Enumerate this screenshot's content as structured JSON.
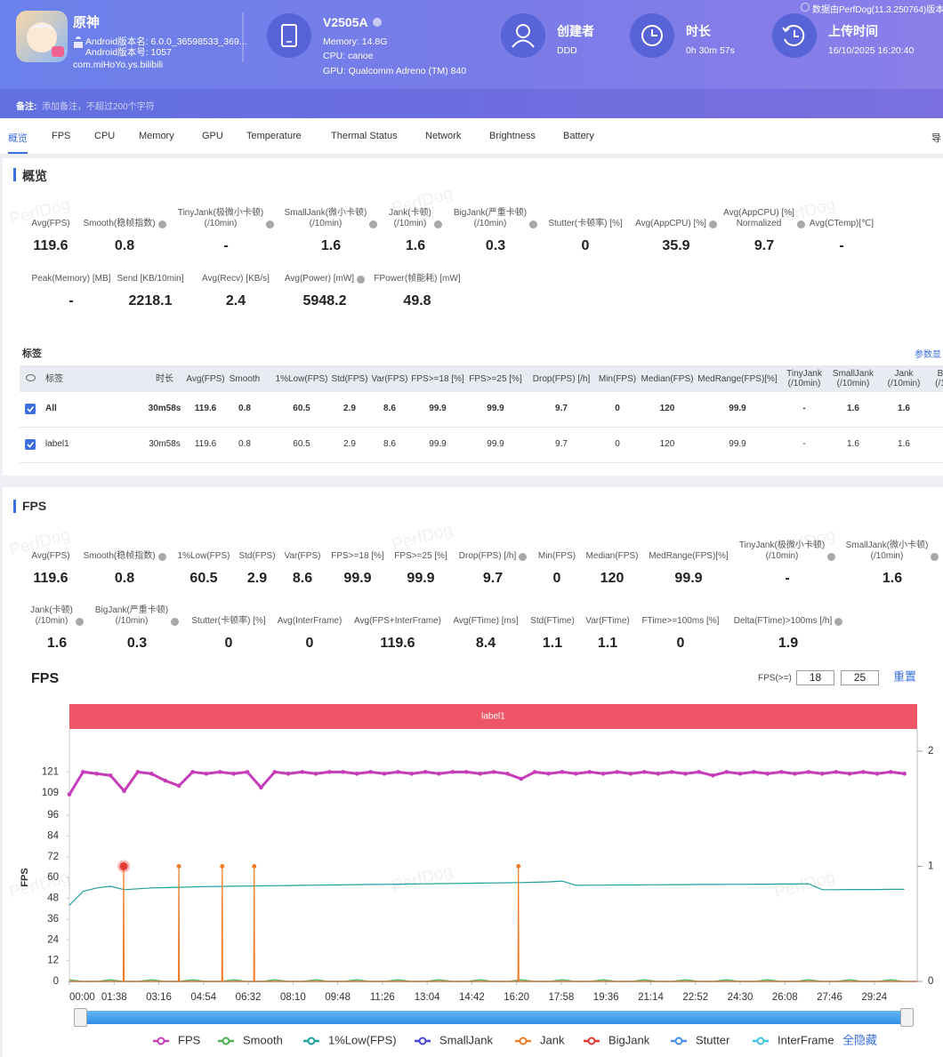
{
  "header": {
    "app_name": "原神",
    "android_version_name": "Android版本名: 6.0.0_36598533_369...",
    "android_version_code": "Android版本号: 1057",
    "package": "com.miHoYo.ys.bilibili",
    "device": "V2505A",
    "memory": "Memory: 14.8G",
    "cpu": "CPU: canoe",
    "gpu": "GPU: Qualcomm Adreno (TM) 840",
    "creator_label": "创建者",
    "creator": "DDD",
    "duration_label": "时长",
    "duration": "0h 30m 57s",
    "upload_label": "上传时间",
    "upload_time": "16/10/2025 16:20:40",
    "source": "数据由PerfDog(11.3.250764)版本",
    "note_label": "备注:",
    "note_placeholder": "添加备注，不超过200个字符"
  },
  "tabs": [
    "概览",
    "FPS",
    "CPU",
    "Memory",
    "GPU",
    "Temperature",
    "Thermal Status",
    "Network",
    "Brightness",
    "Battery"
  ],
  "active_tab": 0,
  "export_button": "导",
  "watermark": "PerfDog",
  "overview": {
    "title": "概览",
    "rows": [
      [
        {
          "label": "Avg(FPS)",
          "value": "119.6",
          "help": false
        },
        {
          "label": "Smooth(稳帧指数)",
          "value": "0.8",
          "help": true
        },
        {
          "label": "TinyJank(极微小卡顿)\n(/10min)",
          "value": "-",
          "help": true
        },
        {
          "label": "SmallJank(微小卡顿)\n(/10min)",
          "value": "1.6",
          "help": true
        },
        {
          "label": "Jank(卡顿)\n(/10min)",
          "value": "1.6",
          "help": true
        },
        {
          "label": "BigJank(严重卡顿)\n(/10min)",
          "value": "0.3",
          "help": true
        },
        {
          "label": "Stutter(卡顿率) [%]",
          "value": "0",
          "help": false
        },
        {
          "label": "Avg(AppCPU) [%]",
          "value": "35.9",
          "help": true
        },
        {
          "label": "Avg(AppCPU) [%]\nNormalized",
          "value": "9.7",
          "help": true
        },
        {
          "label": "Avg(CTemp)[℃]",
          "value": "-",
          "help": false
        }
      ],
      [
        {
          "label": "Peak(Memory) [MB]",
          "value": "-",
          "help": false
        },
        {
          "label": "Send [KB/10min]",
          "value": "2218.1",
          "help": false
        },
        {
          "label": "Avg(Recv) [KB/s]",
          "value": "2.4",
          "help": false
        },
        {
          "label": "Avg(Power) [mW]",
          "value": "5948.2",
          "help": true
        },
        {
          "label": "FPower(帧能耗) [mW]",
          "value": "49.8",
          "help": false
        }
      ]
    ]
  },
  "tags": {
    "title": "标签",
    "settings_link": "参数显",
    "columns": [
      "标签",
      "时长",
      "Avg(FPS)",
      "Smooth",
      "1%Low(FPS)",
      "Std(FPS)",
      "Var(FPS)",
      "FPS>=18 [%]",
      "FPS>=25 [%]",
      "Drop(FPS) [/h]",
      "Min(FPS)",
      "Median(FPS)",
      "MedRange(FPS)[%]",
      "TinyJank\n(/10min)",
      "SmallJank\n(/10min)",
      "Jank\n(/10min)",
      "B\n(/1"
    ],
    "rows": [
      {
        "checked": true,
        "bold": true,
        "cells": [
          "All",
          "30m58s",
          "119.6",
          "0.8",
          "60.5",
          "2.9",
          "8.6",
          "99.9",
          "99.9",
          "9.7",
          "0",
          "120",
          "99.9",
          "-",
          "1.6",
          "1.6"
        ]
      },
      {
        "checked": true,
        "bold": false,
        "cells": [
          "label1",
          "30m58s",
          "119.6",
          "0.8",
          "60.5",
          "2.9",
          "8.6",
          "99.9",
          "99.9",
          "9.7",
          "0",
          "120",
          "99.9",
          "-",
          "1.6",
          "1.6"
        ]
      }
    ]
  },
  "fps": {
    "title": "FPS",
    "rows": [
      [
        {
          "label": "Avg(FPS)",
          "value": "119.6",
          "help": false
        },
        {
          "label": "Smooth(稳帧指数)",
          "value": "0.8",
          "help": true
        },
        {
          "label": "1%Low(FPS)",
          "value": "60.5",
          "help": false
        },
        {
          "label": "Std(FPS)",
          "value": "2.9",
          "help": false
        },
        {
          "label": "Var(FPS)",
          "value": "8.6",
          "help": false
        },
        {
          "label": "FPS>=18 [%]",
          "value": "99.9",
          "help": false
        },
        {
          "label": "FPS>=25 [%]",
          "value": "99.9",
          "help": false
        },
        {
          "label": "Drop(FPS) [/h]",
          "value": "9.7",
          "help": true
        },
        {
          "label": "Min(FPS)",
          "value": "0",
          "help": false
        },
        {
          "label": "Median(FPS)",
          "value": "120",
          "help": false
        },
        {
          "label": "MedRange(FPS)[%]",
          "value": "99.9",
          "help": false
        },
        {
          "label": "TinyJank(极微小卡顿)\n(/10min)",
          "value": "-",
          "help": true
        },
        {
          "label": "SmallJank(微小卡顿)\n(/10min)",
          "value": "1.6",
          "help": true
        }
      ],
      [
        {
          "label": "Jank(卡顿)\n(/10min)",
          "value": "1.6",
          "help": true
        },
        {
          "label": "BigJank(严重卡顿)\n(/10min)",
          "value": "0.3",
          "help": true
        },
        {
          "label": "Stutter(卡顿率) [%]",
          "value": "0",
          "help": false
        },
        {
          "label": "Avg(InterFrame)",
          "value": "0",
          "help": false
        },
        {
          "label": "Avg(FPS+InterFrame)",
          "value": "119.6",
          "help": false
        },
        {
          "label": "Avg(FTime) [ms]",
          "value": "8.4",
          "help": false
        },
        {
          "label": "Std(FTime)",
          "value": "1.1",
          "help": false
        },
        {
          "label": "Var(FTime)",
          "value": "1.1",
          "help": false
        },
        {
          "label": "FTime>=100ms [%]",
          "value": "0",
          "help": false
        },
        {
          "label": "Delta(FTime)>100ms [/h]",
          "value": "1.9",
          "help": true
        }
      ]
    ]
  },
  "chart_data": {
    "type": "line",
    "title": "FPS",
    "threshold_label": "FPS(>=)",
    "thresholds": [
      18,
      25
    ],
    "reset": "重置",
    "segment_label": "label1",
    "y_label": "FPS",
    "hide_all": "全隐藏",
    "grid": false,
    "xlim": [
      0,
      1858
    ],
    "ylim": [
      0,
      133
    ],
    "y2lim": [
      0,
      2
    ],
    "xticks": [
      {
        "value": 0,
        "label": "00:00"
      },
      {
        "value": 98,
        "label": "01:38"
      },
      {
        "value": 196,
        "label": "03:16"
      },
      {
        "value": 294,
        "label": "04:54"
      },
      {
        "value": 392,
        "label": "06:32"
      },
      {
        "value": 490,
        "label": "08:10"
      },
      {
        "value": 588,
        "label": "09:48"
      },
      {
        "value": 686,
        "label": "11:26"
      },
      {
        "value": 784,
        "label": "13:04"
      },
      {
        "value": 882,
        "label": "14:42"
      },
      {
        "value": 980,
        "label": "16:20"
      },
      {
        "value": 1078,
        "label": "17:58"
      },
      {
        "value": 1176,
        "label": "19:36"
      },
      {
        "value": 1274,
        "label": "21:14"
      },
      {
        "value": 1372,
        "label": "22:52"
      },
      {
        "value": 1470,
        "label": "24:30"
      },
      {
        "value": 1568,
        "label": "26:08"
      },
      {
        "value": 1666,
        "label": "27:46"
      },
      {
        "value": 1764,
        "label": "29:24"
      }
    ],
    "yticks": [
      0,
      12,
      24,
      36,
      48,
      60,
      72,
      84,
      96,
      109,
      121
    ],
    "y2ticks": [
      0,
      1,
      2
    ],
    "x": [
      0,
      30,
      60,
      90,
      120,
      150,
      180,
      210,
      240,
      270,
      300,
      330,
      360,
      390,
      420,
      450,
      480,
      510,
      540,
      570,
      600,
      630,
      660,
      690,
      720,
      750,
      780,
      810,
      840,
      870,
      900,
      930,
      960,
      990,
      1020,
      1050,
      1080,
      1110,
      1140,
      1170,
      1200,
      1230,
      1260,
      1290,
      1320,
      1350,
      1380,
      1410,
      1440,
      1470,
      1500,
      1530,
      1560,
      1590,
      1620,
      1650,
      1680,
      1710,
      1740,
      1770,
      1800,
      1830
    ],
    "series": [
      {
        "name": "FPS",
        "color": "#c63cb8",
        "values": [
          108,
          121,
          120,
          119,
          110,
          121,
          120,
          116,
          113,
          121,
          120,
          121,
          120,
          121,
          112,
          121,
          120,
          121,
          120,
          121,
          121,
          120,
          121,
          120,
          121,
          120,
          121,
          120,
          121,
          121,
          120,
          121,
          120,
          117,
          121,
          120,
          121,
          120,
          121,
          120,
          121,
          120,
          121,
          120,
          121,
          120,
          121,
          119,
          121,
          120,
          121,
          120,
          121,
          120,
          121,
          120,
          121,
          120,
          121,
          120,
          121,
          120
        ]
      },
      {
        "name": "Smooth",
        "color": "#4caf50",
        "values": [
          1,
          0,
          0,
          1,
          0,
          0,
          1,
          0,
          0,
          1,
          0,
          0,
          1,
          0,
          0,
          1,
          0,
          0,
          1,
          0,
          0,
          1,
          0,
          0,
          1,
          0,
          0,
          1,
          0,
          0,
          1,
          0,
          0,
          1,
          0,
          0,
          1,
          0,
          0,
          1,
          0,
          0,
          1,
          0,
          0,
          1,
          0,
          0,
          1,
          0,
          0,
          1,
          0,
          0,
          1,
          0,
          0,
          1,
          0,
          0,
          1,
          0
        ]
      },
      {
        "name": "1%Low(FPS)",
        "color": "#1f9e9e",
        "values": [
          44,
          52,
          54,
          55,
          53,
          53.5,
          54,
          54.2,
          54.4,
          54.6,
          54.8,
          54.9,
          55,
          55.1,
          55.2,
          55.3,
          55.4,
          55.5,
          55.6,
          55.7,
          55.8,
          55.9,
          56,
          56.1,
          56.2,
          56.3,
          56.4,
          56.5,
          56.6,
          56.7,
          56.8,
          56.9,
          57,
          57.1,
          57.3,
          57.5,
          58,
          55.5,
          55.6,
          55.6,
          55.7,
          55.7,
          55.8,
          55.8,
          55.9,
          55.9,
          56,
          56,
          56.1,
          56.1,
          56.2,
          56.2,
          56.3,
          56.3,
          56.4,
          53,
          53,
          53.1,
          53.1,
          53.1,
          53.2,
          53.2
        ]
      },
      {
        "name": "SmallJank",
        "color": "#4646d6",
        "axis": "y2",
        "x": [
          0,
          1858
        ],
        "values": [
          0,
          0
        ]
      },
      {
        "name": "Jank",
        "color": "#f07c2a",
        "axis": "y2",
        "x": [
          0,
          118,
          119,
          120,
          239,
          240,
          241,
          334,
          335,
          336,
          404,
          405,
          406,
          983,
          984,
          985,
          1858
        ],
        "values": [
          0,
          0,
          1,
          0,
          0,
          1,
          0,
          0,
          1,
          0,
          0,
          1,
          0,
          0,
          1,
          0,
          0
        ]
      },
      {
        "name": "BigJank",
        "color": "#e53935",
        "axis": "y2",
        "x": [
          119
        ],
        "values": [
          1
        ]
      },
      {
        "name": "Stutter",
        "color": "#4a90e2",
        "axis": "y2",
        "x": [
          0,
          1858
        ],
        "values": [
          0,
          0
        ]
      },
      {
        "name": "InterFrame",
        "color": "#3ec6e0",
        "axis": "y2",
        "x": [
          0,
          1858
        ],
        "values": [
          0,
          0
        ]
      }
    ]
  }
}
